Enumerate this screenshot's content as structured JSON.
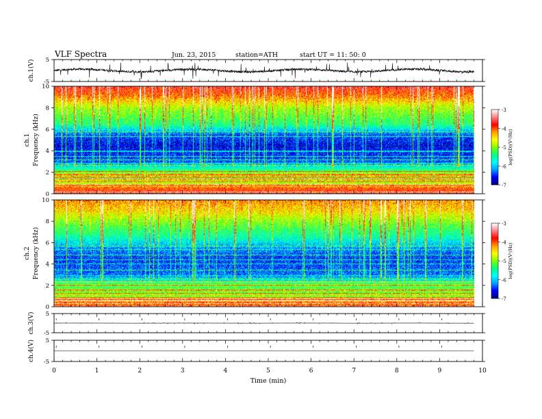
{
  "header": {
    "title": "VLF  Spectra",
    "date": "Jun. 23, 2015",
    "station": "station=ATH",
    "start": "start  UT  =    11: 50: 0"
  },
  "chart_data": [
    {
      "type": "line",
      "panel": "ch1-waveform",
      "ylabel": "ch.1(V)",
      "ylim": [
        -5,
        5
      ],
      "yticks": [
        "5",
        "-5"
      ],
      "x_range": [
        0,
        9.8
      ],
      "baseline": 0,
      "amplitude_typical": 1.0,
      "amplitude_max": 4.0
    },
    {
      "type": "heatmap",
      "panel": "ch1-spectrogram",
      "ylabel_top": "ch.1",
      "ylabel": "Frequency (kHz)",
      "ylim": [
        0,
        10
      ],
      "yticks": [
        "0",
        "2",
        "4",
        "6",
        "8",
        "10"
      ],
      "x_range": [
        0,
        9.8
      ],
      "colorbar": {
        "label": "log(PSD)(V²/Hz)",
        "range": [
          -7,
          -3
        ],
        "ticks": [
          "-3",
          "-4",
          "-5",
          "-6",
          "-7"
        ],
        "colors": [
          "#000080",
          "#0000ff",
          "#00a0ff",
          "#00ffff",
          "#00ff80",
          "#80ff00",
          "#ffff00",
          "#ffa000",
          "#ff0000",
          "#ff8080",
          "#ffffff"
        ]
      },
      "frequency_profile_kHz": [
        {
          "f": 0.0,
          "level": -3.8
        },
        {
          "f": 0.5,
          "level": -3.9
        },
        {
          "f": 1.0,
          "level": -4.8
        },
        {
          "f": 2.0,
          "level": -5.0
        },
        {
          "f": 2.5,
          "level": -5.7
        },
        {
          "f": 3.0,
          "level": -6.4
        },
        {
          "f": 4.5,
          "level": -6.7
        },
        {
          "f": 5.5,
          "level": -6.4
        },
        {
          "f": 6.5,
          "level": -5.4
        },
        {
          "f": 8.0,
          "level": -4.9
        },
        {
          "f": 9.0,
          "level": -4.2
        },
        {
          "f": 10.0,
          "level": -3.7
        }
      ]
    },
    {
      "type": "heatmap",
      "panel": "ch2-spectrogram",
      "ylabel_top": "ch.2",
      "ylabel": "Frequency (kHz)",
      "ylim": [
        0,
        10
      ],
      "yticks": [
        "0",
        "2",
        "4",
        "6",
        "8",
        "10"
      ],
      "x_range": [
        0,
        9.8
      ],
      "colorbar": {
        "label": "log(PSD)(V²/Hz)",
        "range": [
          -7,
          -3
        ],
        "ticks": [
          "-3",
          "-4",
          "-5",
          "-6",
          "-7"
        ],
        "colors": [
          "#000080",
          "#0000ff",
          "#00a0ff",
          "#00ffff",
          "#00ff80",
          "#80ff00",
          "#ffff00",
          "#ffa000",
          "#ff0000",
          "#ff8080",
          "#ffffff"
        ]
      },
      "frequency_profile_kHz": [
        {
          "f": 0.0,
          "level": -4.0
        },
        {
          "f": 0.5,
          "level": -4.1
        },
        {
          "f": 1.0,
          "level": -5.0
        },
        {
          "f": 2.0,
          "level": -5.2
        },
        {
          "f": 2.5,
          "level": -5.8
        },
        {
          "f": 3.0,
          "level": -6.3
        },
        {
          "f": 4.5,
          "level": -6.5
        },
        {
          "f": 5.5,
          "level": -6.2
        },
        {
          "f": 6.5,
          "level": -5.6
        },
        {
          "f": 8.0,
          "level": -5.0
        },
        {
          "f": 9.0,
          "level": -4.5
        },
        {
          "f": 10.0,
          "level": -4.2
        }
      ]
    },
    {
      "type": "line",
      "panel": "ch3-waveform",
      "ylabel": "ch.3(V)",
      "ylim": [
        -5,
        5
      ],
      "yticks": [
        "5",
        "-5"
      ],
      "x_range": [
        0,
        9.8
      ],
      "baseline": 0,
      "amplitude_typical": 0.05,
      "amplitude_max": 0.3
    },
    {
      "type": "line",
      "panel": "ch4-waveform",
      "ylabel": "ch.4(V)",
      "ylim": [
        -5,
        5
      ],
      "yticks": [
        "5",
        "-5"
      ],
      "x_range": [
        0,
        9.8
      ],
      "baseline": 0,
      "amplitude_typical": 0.0,
      "amplitude_max": 0.0
    }
  ],
  "x_axis": {
    "label": "Time  (min)",
    "range": [
      0,
      10
    ],
    "ticks": [
      "0",
      "1",
      "2",
      "3",
      "4",
      "5",
      "6",
      "7",
      "8",
      "9",
      "10"
    ]
  }
}
